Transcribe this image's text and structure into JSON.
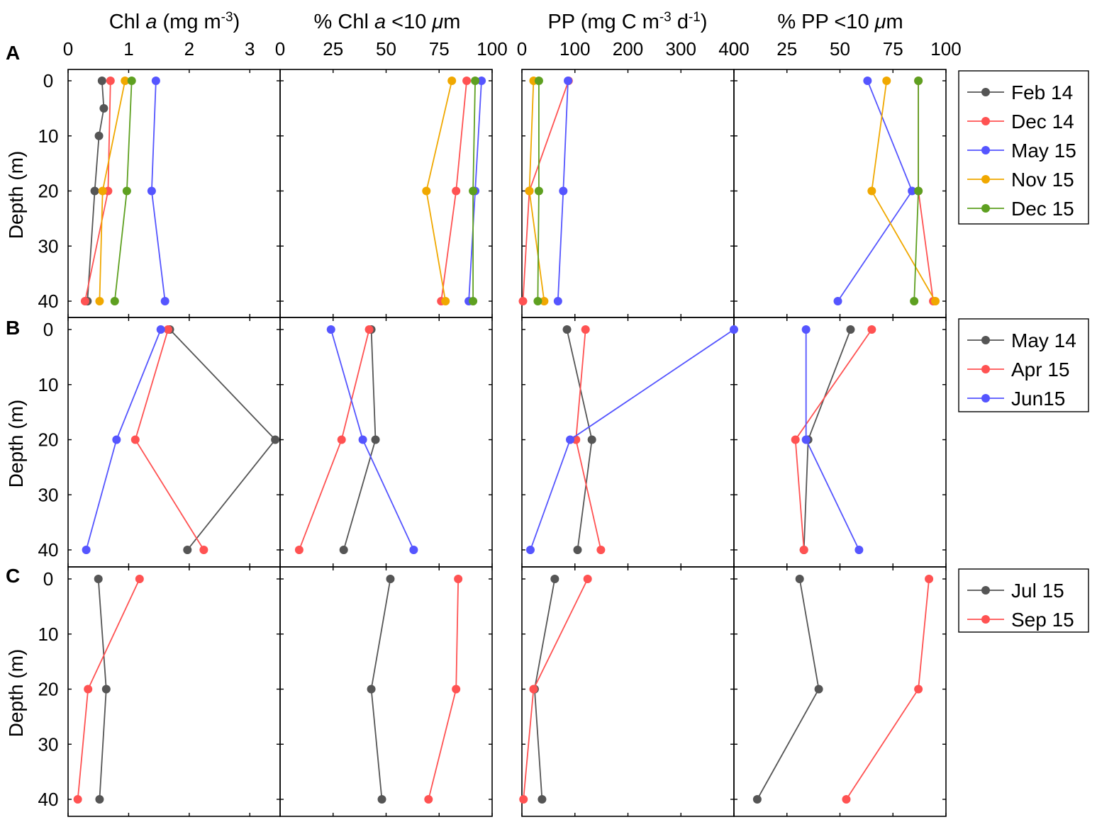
{
  "colors": {
    "black": "#555555",
    "red": "#ff5252",
    "blue": "#5555ff",
    "orange": "#f0a800",
    "green": "#5ea020"
  },
  "headers": {
    "chl": {
      "pre": "Chl ",
      "ital": "a",
      "post": " (mg m",
      "sup": "-3",
      "tail": ")"
    },
    "pchl": {
      "pre": "% Chl ",
      "ital": "a",
      "post": " <10 ",
      "mu": "μ",
      "unit": "m"
    },
    "pp": {
      "pre": "PP (mg C m",
      "sup1": "-3",
      "mid": " d",
      "sup2": "-1",
      "tail": ")"
    },
    "ppp": {
      "pre": "% PP <10 ",
      "mu": "μ",
      "unit": "m"
    }
  },
  "ylabel": "Depth (m)",
  "y_ticks": [
    "0",
    "10",
    "20",
    "30",
    "40"
  ],
  "panel_labels": [
    "A",
    "B",
    "C"
  ],
  "x_tick_labels": {
    "chl": [
      "0",
      "1",
      "2",
      "3"
    ],
    "pchl": [
      "0",
      "25",
      "50",
      "75",
      "100"
    ],
    "pp": [
      "0",
      "100",
      "200",
      "300",
      "400"
    ],
    "ppp": [
      "0",
      "25",
      "50",
      "75",
      "100"
    ]
  },
  "legends": [
    [
      "Feb 14",
      "Dec 14",
      "May 15",
      "Nov 15",
      "Dec 15"
    ],
    [
      "May 14",
      "Apr 15",
      "Jun15"
    ],
    [
      "Jul 15",
      "Sep 15"
    ]
  ],
  "chart_data": [
    {
      "panel": "A",
      "type": "line",
      "y": [
        0,
        5,
        10,
        20,
        40
      ],
      "ylabel": "Depth (m)",
      "ylim": [
        0,
        40
      ],
      "series": [
        {
          "name": "Feb 14",
          "color": "black",
          "chl": [
            [
              0.56,
              0
            ],
            [
              0.59,
              5
            ],
            [
              0.51,
              10
            ],
            [
              0.44,
              20
            ],
            [
              0.32,
              40
            ]
          ],
          "pchl": [],
          "pp": [],
          "ppp": []
        },
        {
          "name": "Dec 14",
          "color": "red",
          "chl": [
            [
              0.7,
              0
            ],
            [
              0.66,
              20
            ],
            [
              0.28,
              40
            ]
          ],
          "pchl": [
            [
              88,
              0
            ],
            [
              83,
              20
            ],
            [
              76,
              40
            ]
          ],
          "pp": [
            [
              88,
              0
            ],
            [
              14,
              20
            ],
            [
              2,
              40
            ]
          ],
          "ppp": [
            [
              87,
              0
            ],
            [
              87,
              20
            ],
            [
              94,
              40
            ]
          ]
        },
        {
          "name": "May 15",
          "color": "blue",
          "chl": [
            [
              1.45,
              0
            ],
            [
              1.38,
              20
            ],
            [
              1.6,
              40
            ]
          ],
          "pchl": [
            [
              95,
              0
            ],
            [
              92,
              20
            ],
            [
              89,
              40
            ]
          ],
          "pp": [
            [
              87,
              0
            ],
            [
              78,
              20
            ],
            [
              68,
              40
            ]
          ],
          "ppp": [
            [
              63,
              0
            ],
            [
              84,
              20
            ],
            [
              49,
              40
            ]
          ]
        },
        {
          "name": "Nov 15",
          "color": "orange",
          "chl": [
            [
              0.94,
              0
            ],
            [
              0.57,
              20
            ],
            [
              0.52,
              40
            ]
          ],
          "pchl": [
            [
              81,
              0
            ],
            [
              69,
              20
            ],
            [
              78,
              40
            ]
          ],
          "pp": [
            [
              22,
              0
            ],
            [
              14,
              20
            ],
            [
              42,
              40
            ]
          ],
          "ppp": [
            [
              72,
              0
            ],
            [
              65,
              20
            ],
            [
              95,
              40
            ]
          ]
        },
        {
          "name": "Dec 15",
          "color": "green",
          "chl": [
            [
              1.05,
              0
            ],
            [
              0.97,
              20
            ],
            [
              0.77,
              40
            ]
          ],
          "pchl": [
            [
              92,
              0
            ],
            [
              91,
              20
            ],
            [
              91,
              40
            ]
          ],
          "pp": [
            [
              32,
              0
            ],
            [
              32,
              20
            ],
            [
              30,
              40
            ]
          ],
          "ppp": [
            [
              87,
              0
            ],
            [
              87,
              20
            ],
            [
              85,
              40
            ]
          ]
        }
      ]
    },
    {
      "panel": "B",
      "type": "line",
      "y": [
        0,
        20,
        40
      ],
      "ylabel": "Depth (m)",
      "ylim": [
        0,
        40
      ],
      "series": [
        {
          "name": "May 14",
          "color": "black",
          "chl": [
            [
              1.68,
              0
            ],
            [
              3.42,
              20
            ],
            [
              1.97,
              40
            ]
          ],
          "pchl": [
            [
              43,
              0
            ],
            [
              45,
              20
            ],
            [
              30,
              40
            ]
          ],
          "pp": [
            [
              85,
              0
            ],
            [
              132,
              20
            ],
            [
              105,
              40
            ]
          ],
          "ppp": [
            [
              55,
              0
            ],
            [
              35,
              20
            ],
            [
              33,
              40
            ]
          ]
        },
        {
          "name": "Apr 15",
          "color": "red",
          "chl": [
            [
              1.65,
              0
            ],
            [
              1.11,
              20
            ],
            [
              2.24,
              40
            ]
          ],
          "pchl": [
            [
              42,
              0
            ],
            [
              29,
              20
            ],
            [
              9,
              40
            ]
          ],
          "pp": [
            [
              120,
              0
            ],
            [
              102,
              20
            ],
            [
              149,
              40
            ]
          ],
          "ppp": [
            [
              65,
              0
            ],
            [
              29,
              20
            ],
            [
              33,
              40
            ]
          ]
        },
        {
          "name": "Jun15",
          "color": "blue",
          "chl": [
            [
              1.53,
              0
            ],
            [
              0.8,
              20
            ],
            [
              0.3,
              40
            ]
          ],
          "pchl": [
            [
              24,
              0
            ],
            [
              39,
              20
            ],
            [
              63,
              40
            ]
          ],
          "pp": [
            [
              400,
              0
            ],
            [
              91,
              20
            ],
            [
              16,
              40
            ]
          ],
          "ppp": [
            [
              34,
              0
            ],
            [
              34,
              20
            ],
            [
              59,
              40
            ]
          ]
        }
      ]
    },
    {
      "panel": "C",
      "type": "line",
      "y": [
        0,
        20,
        40
      ],
      "ylabel": "Depth (m)",
      "ylim": [
        0,
        40
      ],
      "series": [
        {
          "name": "Jul 15",
          "color": "black",
          "chl": [
            [
              0.5,
              0
            ],
            [
              0.63,
              20
            ],
            [
              0.52,
              40
            ]
          ],
          "pchl": [
            [
              52,
              0
            ],
            [
              43,
              20
            ],
            [
              48,
              40
            ]
          ],
          "pp": [
            [
              62,
              0
            ],
            [
              24,
              20
            ],
            [
              38,
              40
            ]
          ],
          "ppp": [
            [
              31,
              0
            ],
            [
              40,
              20
            ],
            [
              11,
              40
            ]
          ]
        },
        {
          "name": "Sep 15",
          "color": "red",
          "chl": [
            [
              1.18,
              0
            ],
            [
              0.33,
              20
            ],
            [
              0.16,
              40
            ]
          ],
          "pchl": [
            [
              84,
              0
            ],
            [
              83,
              20
            ],
            [
              70,
              40
            ]
          ],
          "pp": [
            [
              124,
              0
            ],
            [
              22,
              20
            ],
            [
              3,
              40
            ]
          ],
          "ppp": [
            [
              92,
              0
            ],
            [
              87,
              20
            ],
            [
              53,
              40
            ]
          ]
        }
      ]
    }
  ]
}
